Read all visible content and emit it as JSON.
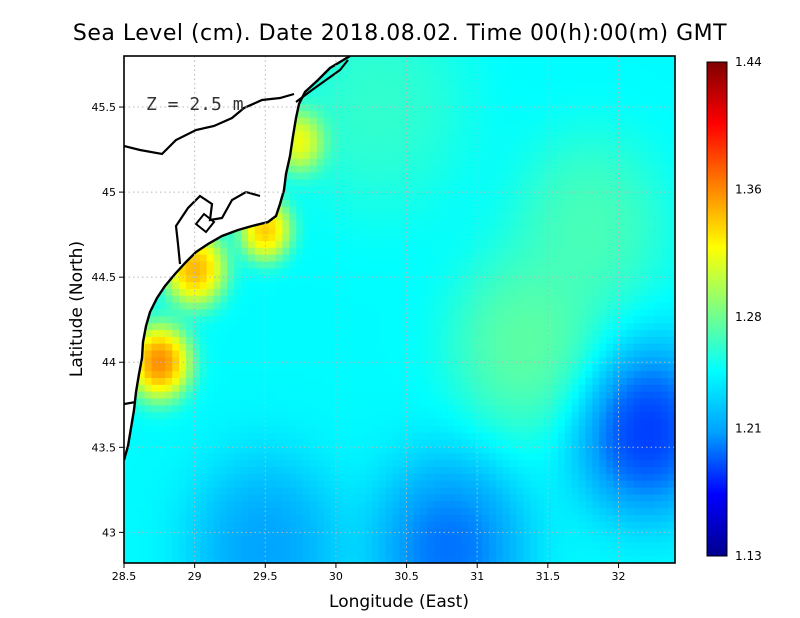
{
  "chart_data": {
    "type": "heatmap",
    "title": "Sea Level (cm). Date 2018.08.02. Time 00(h):00(m) GMT",
    "annotation": "Z = 2.5 m",
    "xlabel": "Longitude (East)",
    "ylabel": "Latitude (North)",
    "xlim": [
      28.5,
      32.4
    ],
    "ylim": [
      42.82,
      45.8
    ],
    "x_ticks": [
      "28.5",
      "29",
      "29.5",
      "30",
      "30.5",
      "31",
      "31.5",
      "32"
    ],
    "x_tick_values": [
      28.5,
      29,
      29.5,
      30,
      30.5,
      31,
      31.5,
      32
    ],
    "y_ticks": [
      "43",
      "43.5",
      "44",
      "44.5",
      "45",
      "45.5"
    ],
    "y_tick_values": [
      43,
      43.5,
      44,
      44.5,
      45,
      45.5
    ],
    "grid": true,
    "colorbar": {
      "min": 1.13,
      "max": 1.44,
      "ticks": [
        "1.44",
        "1.36",
        "1.28",
        "1.21",
        "1.13"
      ],
      "tick_values": [
        1.44,
        1.36,
        1.28,
        1.21,
        1.13
      ],
      "colormap": [
        "#00008f",
        "#0000ff",
        "#00a0ff",
        "#00ffff",
        "#80ff80",
        "#ffff00",
        "#ff8000",
        "#ff0000",
        "#800000"
      ]
    },
    "land_color": "#ffffff",
    "coastline_color": "#000000",
    "field_centers": [
      {
        "lon": 28.75,
        "lat": 44.0,
        "value": 1.42,
        "spread": 0.12
      },
      {
        "lon": 29.0,
        "lat": 44.55,
        "value": 1.4,
        "spread": 0.12
      },
      {
        "lon": 29.5,
        "lat": 44.78,
        "value": 1.39,
        "spread": 0.1
      },
      {
        "lon": 29.75,
        "lat": 45.3,
        "value": 1.37,
        "spread": 0.1
      },
      {
        "lon": 31.35,
        "lat": 44.1,
        "value": 1.29,
        "spread": 0.3
      },
      {
        "lon": 31.8,
        "lat": 44.8,
        "value": 1.28,
        "spread": 0.3
      },
      {
        "lon": 30.3,
        "lat": 45.5,
        "value": 1.27,
        "spread": 0.35
      },
      {
        "lon": 32.2,
        "lat": 43.6,
        "value": 1.15,
        "spread": 0.28
      },
      {
        "lon": 30.8,
        "lat": 42.9,
        "value": 1.17,
        "spread": 0.3
      },
      {
        "lon": 29.5,
        "lat": 42.9,
        "value": 1.19,
        "spread": 0.3
      }
    ],
    "background_value": 1.245
  }
}
